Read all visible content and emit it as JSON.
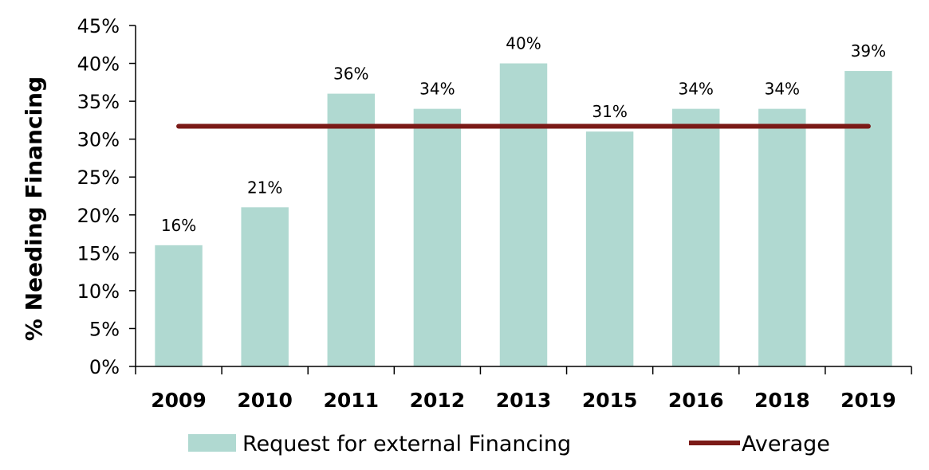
{
  "chart_data": {
    "type": "bar",
    "categories": [
      "2009",
      "2010",
      "2011",
      "2012",
      "2013",
      "2015",
      "2016",
      "2018",
      "2019"
    ],
    "series": [
      {
        "name": "Request for external Financing",
        "type": "bar",
        "values": [
          16,
          21,
          36,
          34,
          40,
          31,
          34,
          34,
          39
        ],
        "color": "#b0d9d1"
      },
      {
        "name": "Average",
        "type": "line",
        "value": 31.7,
        "color": "#7b1a17"
      }
    ],
    "data_labels": [
      "16%",
      "21%",
      "36%",
      "34%",
      "40%",
      "31%",
      "34%",
      "34%",
      "39%"
    ],
    "ylabel": "% Needing Financing",
    "xlabel": "",
    "ylim": [
      0,
      45
    ],
    "yticks": [
      0,
      5,
      10,
      15,
      20,
      25,
      30,
      35,
      40,
      45
    ],
    "ytick_labels": [
      "0%",
      "5%",
      "10%",
      "15%",
      "20%",
      "25%",
      "30%",
      "35%",
      "40%",
      "45%"
    ],
    "grid": false,
    "legend_position": "bottom"
  }
}
